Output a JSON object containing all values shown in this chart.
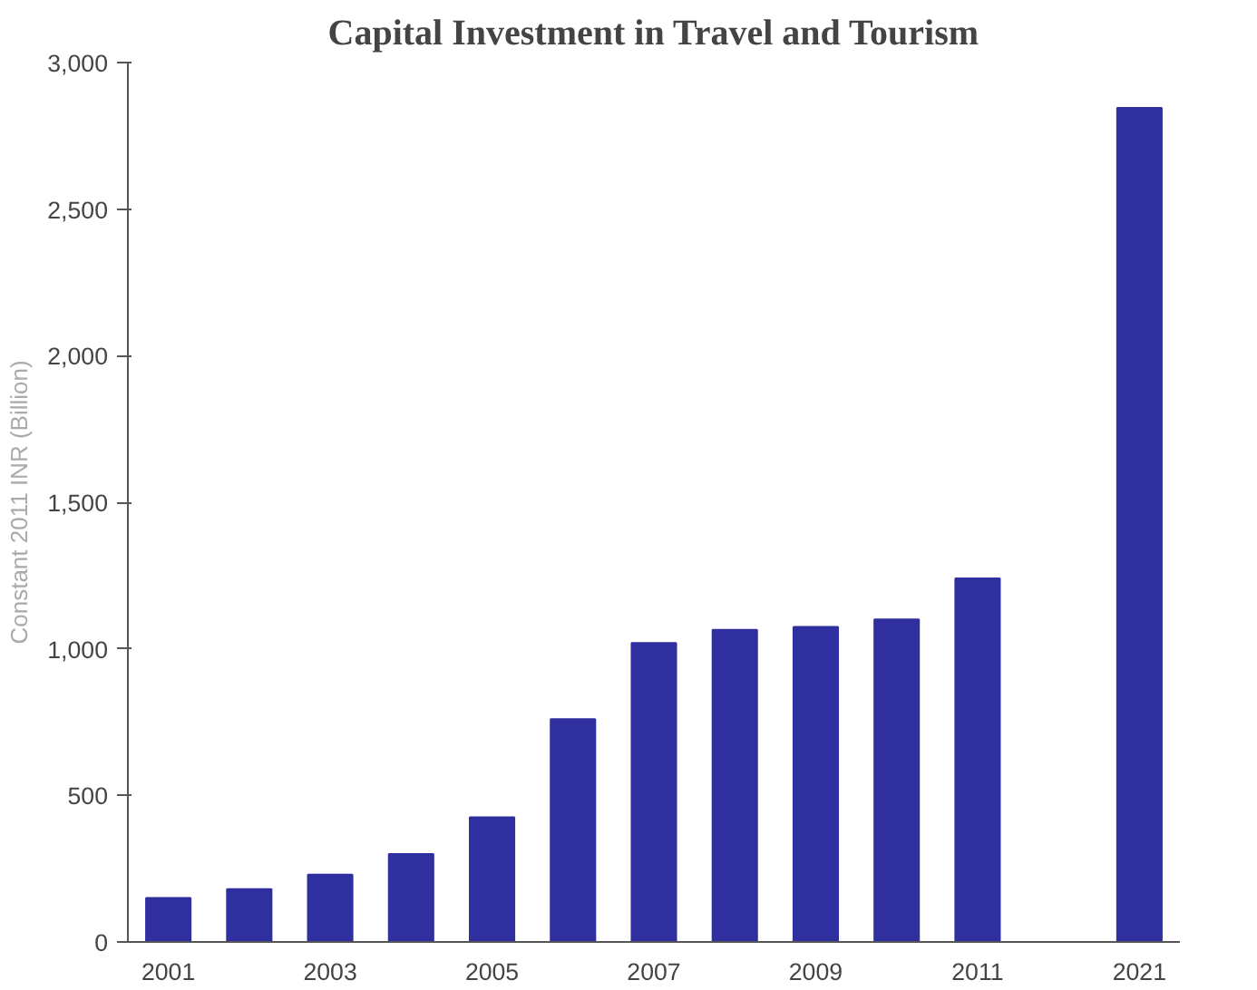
{
  "chart_data": {
    "type": "bar",
    "title": "Capital Investment in Travel and Tourism",
    "ylabel": "Constant 2011 INR (Billion)",
    "categories": [
      "2001",
      null,
      "2003",
      null,
      "2005",
      null,
      "2007",
      null,
      "2009",
      null,
      "2011",
      null,
      "2021"
    ],
    "values": [
      150,
      180,
      230,
      300,
      425,
      760,
      1020,
      1065,
      1075,
      1100,
      1240,
      null,
      2845
    ],
    "color": "#2f2f9f",
    "ylim": [
      0,
      3000
    ],
    "yticks": [
      {
        "value": 0,
        "label": "0"
      },
      {
        "value": 500,
        "label": "500"
      },
      {
        "value": 1000,
        "label": "1,000"
      },
      {
        "value": 1500,
        "label": "1,500"
      },
      {
        "value": 2000,
        "label": "2,000"
      },
      {
        "value": 2500,
        "label": "2,500"
      },
      {
        "value": 3000,
        "label": "3,000"
      }
    ],
    "grid": false
  }
}
